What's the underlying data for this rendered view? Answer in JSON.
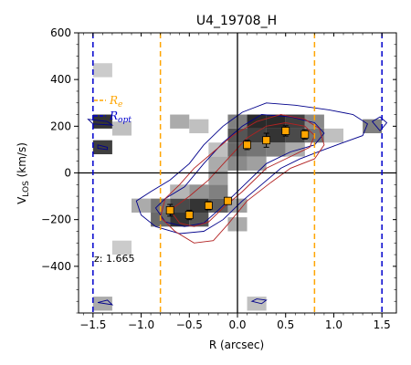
{
  "chart_data": {
    "type": "scatter",
    "title": "U4_19708_H",
    "xlabel": "R (arcsec)",
    "ylabel_main": "V",
    "ylabel_sub": "LOS",
    "ylabel_unit": " (km/s)",
    "xlim": [
      -1.65,
      1.65
    ],
    "ylim": [
      -600,
      600
    ],
    "xticks": [
      -1.5,
      -1.0,
      -0.5,
      0.0,
      0.5,
      1.0,
      1.5
    ],
    "xtick_labels": [
      "−1.5",
      "−1.0",
      "−0.5",
      "0.0",
      "0.5",
      "1.0",
      "1.5"
    ],
    "yticks": [
      -400,
      -200,
      0,
      200,
      400,
      600
    ],
    "ytick_labels": [
      "−400",
      "−200",
      "0",
      "200",
      "400",
      "600"
    ],
    "grid": false,
    "vlines": [
      {
        "x": -0.8,
        "color": "#ffa500",
        "style": "dashed"
      },
      {
        "x": 0.8,
        "color": "#ffa500",
        "style": "dashed"
      },
      {
        "x": -1.5,
        "color": "#0000cd",
        "style": "dashed"
      },
      {
        "x": 1.5,
        "color": "#0000cd",
        "style": "dashed"
      }
    ],
    "legend": {
      "placement": "left",
      "entries": [
        {
          "label_main": "R",
          "label_sub": "e",
          "color": "#ffa500"
        },
        {
          "label_main": "R",
          "label_sub": "opt",
          "color": "#0000cd"
        }
      ]
    },
    "annotation": "z: 1.665",
    "series": [
      {
        "x": [
          -0.7,
          -0.5,
          -0.3,
          -0.1,
          0.1,
          0.3,
          0.5,
          0.7
        ],
        "y": [
          -160,
          -180,
          -140,
          -120,
          120,
          140,
          180,
          165
        ],
        "yerr": [
          25,
          20,
          18,
          15,
          20,
          30,
          22,
          20
        ],
        "marker": "square",
        "color": "#ffa500"
      }
    ],
    "pixel_map": [
      {
        "x": -1.4,
        "y": 440,
        "v": 0.15
      },
      {
        "x": -1.4,
        "y": 220,
        "v": 0.85
      },
      {
        "x": -1.4,
        "y": 110,
        "v": 0.8
      },
      {
        "x": -1.2,
        "y": 190,
        "v": 0.2
      },
      {
        "x": -1.0,
        "y": -140,
        "v": 0.3
      },
      {
        "x": -0.8,
        "y": -140,
        "v": 0.55
      },
      {
        "x": -0.8,
        "y": -200,
        "v": 0.6
      },
      {
        "x": -0.6,
        "y": -140,
        "v": 0.75
      },
      {
        "x": -0.6,
        "y": -200,
        "v": 0.85
      },
      {
        "x": -0.6,
        "y": -80,
        "v": 0.25
      },
      {
        "x": -0.4,
        "y": -140,
        "v": 0.85
      },
      {
        "x": -0.4,
        "y": -200,
        "v": 0.7
      },
      {
        "x": -0.4,
        "y": -80,
        "v": 0.4
      },
      {
        "x": -0.2,
        "y": -140,
        "v": 0.65
      },
      {
        "x": -0.2,
        "y": -80,
        "v": 0.5
      },
      {
        "x": -0.2,
        "y": -20,
        "v": 0.35
      },
      {
        "x": -0.2,
        "y": 40,
        "v": 0.3
      },
      {
        "x": -0.2,
        "y": 100,
        "v": 0.2
      },
      {
        "x": -0.6,
        "y": 220,
        "v": 0.3
      },
      {
        "x": -0.4,
        "y": 200,
        "v": 0.2
      },
      {
        "x": 0.0,
        "y": -220,
        "v": 0.3
      },
      {
        "x": 0.0,
        "y": -140,
        "v": 0.35
      },
      {
        "x": 0.0,
        "y": 40,
        "v": 0.45
      },
      {
        "x": 0.0,
        "y": 100,
        "v": 0.6
      },
      {
        "x": 0.0,
        "y": 160,
        "v": 0.7
      },
      {
        "x": 0.0,
        "y": 220,
        "v": 0.5
      },
      {
        "x": 0.2,
        "y": 40,
        "v": 0.35
      },
      {
        "x": 0.2,
        "y": 100,
        "v": 0.55
      },
      {
        "x": 0.2,
        "y": 160,
        "v": 0.8
      },
      {
        "x": 0.2,
        "y": 220,
        "v": 0.9
      },
      {
        "x": 0.4,
        "y": 100,
        "v": 0.5
      },
      {
        "x": 0.4,
        "y": 160,
        "v": 0.85
      },
      {
        "x": 0.4,
        "y": 220,
        "v": 0.9
      },
      {
        "x": 0.6,
        "y": 100,
        "v": 0.3
      },
      {
        "x": 0.6,
        "y": 160,
        "v": 0.75
      },
      {
        "x": 0.6,
        "y": 220,
        "v": 0.8
      },
      {
        "x": 0.8,
        "y": 160,
        "v": 0.55
      },
      {
        "x": 0.8,
        "y": 220,
        "v": 0.45
      },
      {
        "x": 1.0,
        "y": 160,
        "v": 0.2
      },
      {
        "x": 1.4,
        "y": 200,
        "v": 0.5
      },
      {
        "x": 0.2,
        "y": -560,
        "v": 0.2
      },
      {
        "x": -1.4,
        "y": -560,
        "v": 0.3
      },
      {
        "x": -1.2,
        "y": -320,
        "v": 0.15
      }
    ],
    "contour_outer": [
      [
        -1.05,
        -120
      ],
      [
        -1.0,
        -180
      ],
      [
        -0.85,
        -230
      ],
      [
        -0.6,
        -260
      ],
      [
        -0.35,
        -250
      ],
      [
        -0.15,
        -200
      ],
      [
        0.05,
        -120
      ],
      [
        0.25,
        -50
      ],
      [
        0.45,
        20
      ],
      [
        0.65,
        60
      ],
      [
        0.9,
        100
      ],
      [
        1.1,
        130
      ],
      [
        1.3,
        160
      ],
      [
        1.35,
        210
      ],
      [
        1.2,
        250
      ],
      [
        0.95,
        270
      ],
      [
        0.6,
        290
      ],
      [
        0.3,
        300
      ],
      [
        0.05,
        260
      ],
      [
        -0.15,
        200
      ],
      [
        -0.35,
        120
      ],
      [
        -0.5,
        40
      ],
      [
        -0.7,
        -30
      ],
      [
        -0.9,
        -80
      ],
      [
        -1.05,
        -120
      ]
    ],
    "contour_inner": [
      [
        -0.85,
        -150
      ],
      [
        -0.75,
        -210
      ],
      [
        -0.55,
        -230
      ],
      [
        -0.35,
        -215
      ],
      [
        -0.2,
        -160
      ],
      [
        0.05,
        -60
      ],
      [
        0.3,
        40
      ],
      [
        0.55,
        90
      ],
      [
        0.8,
        120
      ],
      [
        0.9,
        170
      ],
      [
        0.8,
        215
      ],
      [
        0.55,
        240
      ],
      [
        0.25,
        250
      ],
      [
        0.05,
        200
      ],
      [
        -0.15,
        130
      ],
      [
        -0.35,
        40
      ],
      [
        -0.55,
        -60
      ],
      [
        -0.75,
        -110
      ],
      [
        -0.85,
        -150
      ]
    ],
    "contour_red": [
      [
        -0.75,
        -110
      ],
      [
        -0.8,
        -190
      ],
      [
        -0.65,
        -250
      ],
      [
        -0.45,
        -300
      ],
      [
        -0.25,
        -290
      ],
      [
        -0.1,
        -220
      ],
      [
        0.1,
        -120
      ],
      [
        0.35,
        -40
      ],
      [
        0.55,
        20
      ],
      [
        0.8,
        60
      ],
      [
        0.9,
        120
      ],
      [
        0.85,
        190
      ],
      [
        0.7,
        230
      ],
      [
        0.45,
        250
      ],
      [
        0.2,
        220
      ],
      [
        -0.05,
        160
      ],
      [
        -0.25,
        90
      ],
      [
        -0.45,
        20
      ],
      [
        -0.6,
        -50
      ],
      [
        -0.75,
        -110
      ]
    ],
    "contour_red_inner": [
      [
        -0.7,
        -160
      ],
      [
        -0.6,
        -215
      ],
      [
        -0.45,
        -230
      ],
      [
        -0.3,
        -210
      ],
      [
        -0.15,
        -150
      ],
      [
        0.05,
        -80
      ],
      [
        0.3,
        20
      ],
      [
        0.55,
        70
      ],
      [
        0.75,
        110
      ],
      [
        0.8,
        160
      ],
      [
        0.7,
        200
      ],
      [
        0.5,
        215
      ],
      [
        0.3,
        200
      ],
      [
        0.1,
        150
      ],
      [
        -0.1,
        60
      ],
      [
        -0.3,
        -30
      ],
      [
        -0.5,
        -100
      ],
      [
        -0.7,
        -160
      ]
    ],
    "small_contours": [
      [
        [
          -1.55,
          230
        ],
        [
          -1.35,
          220
        ],
        [
          -1.3,
          205
        ],
        [
          -1.5,
          210
        ],
        [
          -1.55,
          230
        ]
      ],
      [
        [
          1.4,
          220
        ],
        [
          1.48,
          180
        ],
        [
          1.55,
          215
        ],
        [
          1.48,
          240
        ],
        [
          1.4,
          220
        ]
      ],
      [
        [
          0.15,
          -550
        ],
        [
          0.25,
          -560
        ],
        [
          0.3,
          -545
        ],
        [
          0.2,
          -540
        ],
        [
          0.15,
          -550
        ]
      ],
      [
        [
          -1.45,
          -555
        ],
        [
          -1.3,
          -565
        ],
        [
          -1.35,
          -545
        ],
        [
          -1.45,
          -555
        ]
      ],
      [
        [
          -1.45,
          120
        ],
        [
          -1.35,
          110
        ],
        [
          -1.35,
          100
        ],
        [
          -1.45,
          105
        ],
        [
          -1.45,
          120
        ]
      ]
    ]
  }
}
